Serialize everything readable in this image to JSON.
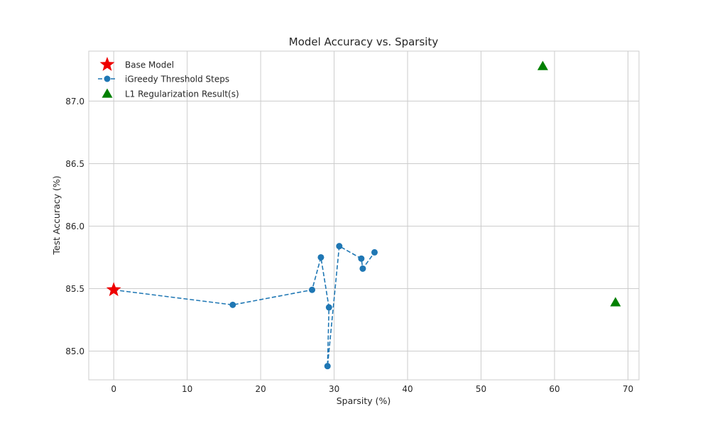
{
  "chart_data": {
    "type": "scatter",
    "title": "Model Accuracy vs. Sparsity",
    "xlabel": "Sparsity (%)",
    "ylabel": "Test Accuracy (%)",
    "xlim": [
      -3.4,
      71.5
    ],
    "ylim": [
      84.77,
      87.4
    ],
    "xticks": [
      0,
      10,
      20,
      30,
      40,
      50,
      60,
      70
    ],
    "yticks": [
      85.0,
      85.5,
      86.0,
      86.5,
      87.0
    ],
    "xtick_labels": [
      "0",
      "10",
      "20",
      "30",
      "40",
      "50",
      "60",
      "70"
    ],
    "ytick_labels": [
      "85.0",
      "85.5",
      "86.0",
      "86.5",
      "87.0"
    ],
    "grid": true,
    "legend_position": "top-left",
    "series": [
      {
        "name": "Base Model",
        "marker": "star",
        "color": "#ee0000",
        "x": [
          0.0
        ],
        "y": [
          85.49
        ]
      },
      {
        "name": "iGreedy Threshold Steps",
        "marker": "circle",
        "linestyle": "dashed",
        "color": "#1f77b4",
        "x": [
          0.0,
          16.2,
          27.0,
          28.2,
          29.3,
          29.1,
          30.7,
          33.7,
          33.9,
          35.5
        ],
        "y": [
          85.49,
          85.37,
          85.49,
          85.75,
          85.35,
          84.88,
          85.84,
          85.74,
          85.66,
          85.79
        ]
      },
      {
        "name": "L1 Regularization Result(s)",
        "marker": "triangle",
        "color": "#008000",
        "x": [
          58.4,
          68.3
        ],
        "y": [
          87.28,
          85.39
        ]
      }
    ]
  }
}
